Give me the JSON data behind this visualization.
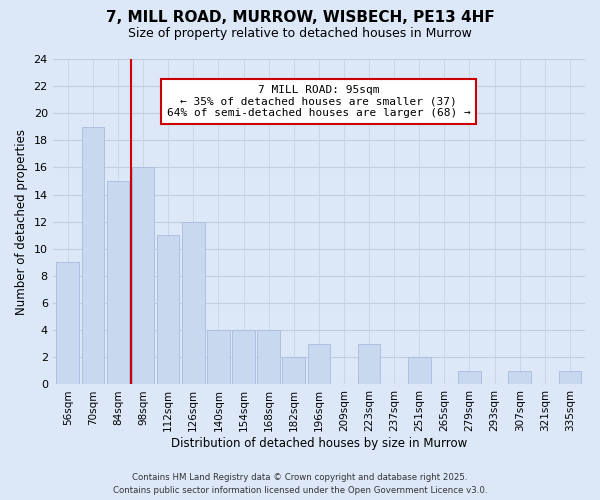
{
  "title": "7, MILL ROAD, MURROW, WISBECH, PE13 4HF",
  "subtitle": "Size of property relative to detached houses in Murrow",
  "xlabel": "Distribution of detached houses by size in Murrow",
  "ylabel": "Number of detached properties",
  "categories": [
    "56sqm",
    "70sqm",
    "84sqm",
    "98sqm",
    "112sqm",
    "126sqm",
    "140sqm",
    "154sqm",
    "168sqm",
    "182sqm",
    "196sqm",
    "209sqm",
    "223sqm",
    "237sqm",
    "251sqm",
    "265sqm",
    "279sqm",
    "293sqm",
    "307sqm",
    "321sqm",
    "335sqm"
  ],
  "values": [
    9,
    19,
    15,
    16,
    11,
    12,
    4,
    4,
    4,
    2,
    3,
    0,
    3,
    0,
    2,
    0,
    1,
    0,
    1,
    0,
    1
  ],
  "bar_color": "#c8d8ee",
  "bar_edge_color": "#aabbdd",
  "reference_line_label": "7 MILL ROAD: 95sqm",
  "annotation_line1": "← 35% of detached houses are smaller (37)",
  "annotation_line2": "64% of semi-detached houses are larger (68) →",
  "annotation_box_color": "#ffffff",
  "annotation_box_edge": "#cc0000",
  "ref_line_color": "#cc0000",
  "ylim": [
    0,
    24
  ],
  "yticks": [
    0,
    2,
    4,
    6,
    8,
    10,
    12,
    14,
    16,
    18,
    20,
    22,
    24
  ],
  "background_color": "#dce8f8",
  "grid_color": "#c0cfe0",
  "footer_line1": "Contains HM Land Registry data © Crown copyright and database right 2025.",
  "footer_line2": "Contains public sector information licensed under the Open Government Licence v3.0."
}
